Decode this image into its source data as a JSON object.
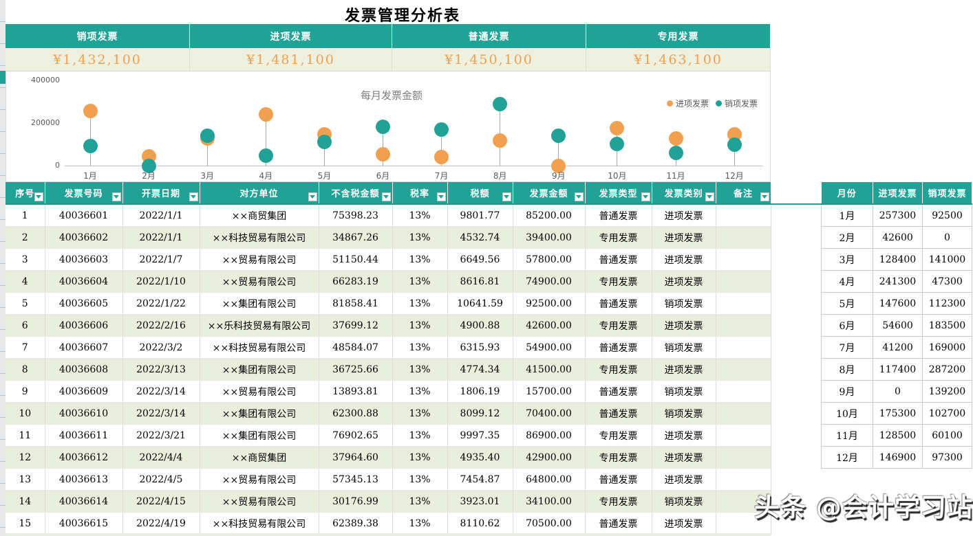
{
  "page": {
    "title": "发票管理分析表"
  },
  "summary_cards": [
    {
      "label": "销项发票",
      "value": "¥1,432,100"
    },
    {
      "label": "进项发票",
      "value": "¥1,481,100"
    },
    {
      "label": "普通发票",
      "value": "¥1,450,100"
    },
    {
      "label": "专用发票",
      "value": "¥1,463,100"
    }
  ],
  "chart_data": {
    "type": "scatter",
    "subtype": "lollipop",
    "title": "每月发票金额",
    "categories": [
      "1月",
      "2月",
      "3月",
      "4月",
      "5月",
      "6月",
      "7月",
      "8月",
      "9月",
      "10月",
      "11月",
      "12月"
    ],
    "series": [
      {
        "name": "进项发票",
        "color": "#f0a04f",
        "values": [
          257300,
          42600,
          128400,
          241300,
          147600,
          54600,
          41200,
          117400,
          0,
          175300,
          128500,
          146900
        ]
      },
      {
        "name": "销项发票",
        "color": "#21a297",
        "values": [
          92500,
          0,
          141000,
          47300,
          112300,
          183500,
          169000,
          287200,
          139200,
          102700,
          60100,
          97300
        ]
      }
    ],
    "ylim": [
      0,
      400000
    ],
    "yticks": [
      0,
      200000,
      400000
    ],
    "grid": false,
    "legend_position": "top-right"
  },
  "invoice_table": {
    "headers": [
      "序号",
      "发票号码",
      "开票日期",
      "对方单位",
      "不含税金额",
      "税率",
      "税额",
      "发票金额",
      "发票类型",
      "发票类别",
      "备注"
    ],
    "rows": [
      [
        "1",
        "40036601",
        "2022/1/1",
        "××商贸集团",
        "75398.23",
        "13%",
        "9801.77",
        "85200.00",
        "普通发票",
        "进项发票",
        ""
      ],
      [
        "2",
        "40036602",
        "2022/1/1",
        "××科技贸易有限公司",
        "34867.26",
        "13%",
        "4532.74",
        "39400.00",
        "专用发票",
        "进项发票",
        ""
      ],
      [
        "3",
        "40036603",
        "2022/1/7",
        "××贸易有限公司",
        "51150.44",
        "13%",
        "6649.56",
        "57800.00",
        "普通发票",
        "进项发票",
        ""
      ],
      [
        "4",
        "40036604",
        "2022/1/10",
        "××贸易有限公司",
        "66283.19",
        "13%",
        "8616.81",
        "74900.00",
        "专用发票",
        "进项发票",
        ""
      ],
      [
        "5",
        "40036605",
        "2022/1/22",
        "××集团有限公司",
        "81858.41",
        "13%",
        "10641.59",
        "92500.00",
        "普通发票",
        "销项发票",
        ""
      ],
      [
        "6",
        "40036606",
        "2022/2/16",
        "××乐科技贸易有限公司",
        "37699.12",
        "13%",
        "4900.88",
        "42600.00",
        "专用发票",
        "进项发票",
        ""
      ],
      [
        "7",
        "40036607",
        "2022/3/2",
        "××科技贸易有限公司",
        "48584.07",
        "13%",
        "6315.93",
        "54900.00",
        "普通发票",
        "销项发票",
        ""
      ],
      [
        "8",
        "40036608",
        "2022/3/13",
        "××集团有限公司",
        "36725.66",
        "13%",
        "4774.34",
        "41500.00",
        "专用发票",
        "进项发票",
        ""
      ],
      [
        "9",
        "40036609",
        "2022/3/14",
        "××贸易有限公司",
        "13893.81",
        "13%",
        "1806.19",
        "15700.00",
        "普通发票",
        "销项发票",
        ""
      ],
      [
        "10",
        "40036610",
        "2022/3/14",
        "××集团有限公司",
        "62300.88",
        "13%",
        "8099.12",
        "70400.00",
        "普通发票",
        "销项发票",
        ""
      ],
      [
        "11",
        "40036611",
        "2022/3/21",
        "××集团有限公司",
        "76902.65",
        "13%",
        "9997.35",
        "86900.00",
        "专用发票",
        "进项发票",
        ""
      ],
      [
        "12",
        "40036612",
        "2022/4/4",
        "××商贸集团",
        "37964.60",
        "13%",
        "4935.40",
        "42900.00",
        "专用发票",
        "进项发票",
        ""
      ],
      [
        "13",
        "40036613",
        "2022/4/5",
        "××贸易有限公司",
        "57345.13",
        "13%",
        "7454.87",
        "64800.00",
        "普通发票",
        "进项发票",
        ""
      ],
      [
        "14",
        "40036614",
        "2022/4/15",
        "××贸易有限公司",
        "30176.99",
        "13%",
        "3923.01",
        "34100.00",
        "专用发票",
        "销项发票",
        ""
      ],
      [
        "15",
        "40036615",
        "2022/4/19",
        "××科技贸易有限公司",
        "62389.38",
        "13%",
        "8110.62",
        "70500.00",
        "普通发票",
        "进项发票",
        ""
      ]
    ]
  },
  "month_table": {
    "headers": [
      "月份",
      "进项发票",
      "销项发票"
    ],
    "rows": [
      [
        "1月",
        "257300",
        "92500"
      ],
      [
        "2月",
        "42600",
        "0"
      ],
      [
        "3月",
        "128400",
        "141000"
      ],
      [
        "4月",
        "241300",
        "47300"
      ],
      [
        "5月",
        "147600",
        "112300"
      ],
      [
        "6月",
        "54600",
        "183500"
      ],
      [
        "7月",
        "41200",
        "169000"
      ],
      [
        "8月",
        "117400",
        "287200"
      ],
      [
        "9月",
        "0",
        "139200"
      ],
      [
        "10月",
        "175300",
        "102700"
      ],
      [
        "11月",
        "128500",
        "60100"
      ],
      [
        "12月",
        "146900",
        "97300"
      ]
    ]
  },
  "watermark": "头条 @会计学习站",
  "colors": {
    "teal": "#21a297",
    "orange": "#f0a04f",
    "band_bg": "#eef0e0",
    "row_alt": "#eaeedc"
  }
}
